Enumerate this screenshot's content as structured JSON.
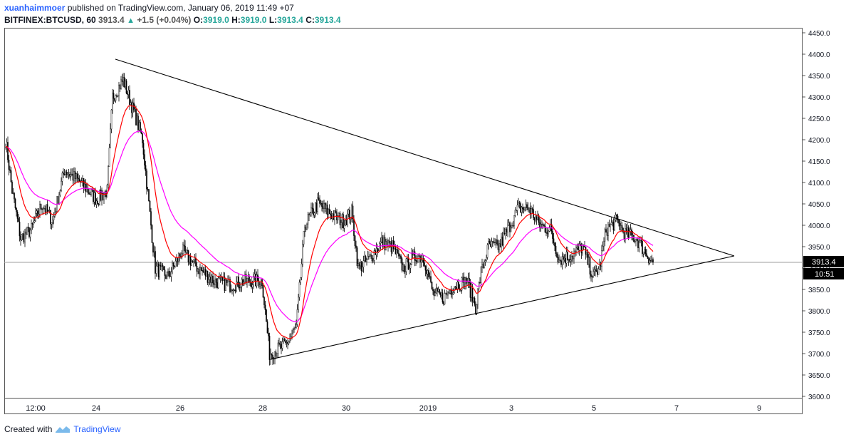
{
  "header": {
    "author": "xuanhaimmoer",
    "published": "published on TradingView.com, January 06, 2019 11:49 +07",
    "symbol": "BITFINEX:BTCUSD, 60",
    "last": "3913.4",
    "change": "+1.5 (+0.04%)",
    "o_label": "O:",
    "o_val": "3919.0",
    "h_label": "H:",
    "h_val": "3919.0",
    "l_label": "L:",
    "l_val": "3913.4",
    "c_label": "C:",
    "c_val": "3913.4"
  },
  "footer": {
    "created_with": "Created with",
    "brand": "TradingView"
  },
  "colors": {
    "ema_fast": "#ff0000",
    "ema_slow": "#ff00ff",
    "candle": "#000000",
    "trendline": "#000000",
    "price_line": "#9e9e9e",
    "up_arrow": "#26a69a"
  },
  "price_label": "3913.4",
  "countdown_label": "10:51",
  "chart_data": {
    "type": "candlestick",
    "y_axis": {
      "min": 3600,
      "max": 4450,
      "ticks": [
        3600,
        3650,
        3700,
        3750,
        3800,
        3850,
        3900,
        3950,
        4000,
        4050,
        4100,
        4150,
        4200,
        4250,
        4300,
        4350,
        4400,
        4450
      ],
      "tick_format": "0.0"
    },
    "x_axis": {
      "labels": [
        "12:00",
        "24",
        "26",
        "28",
        "30",
        "2019",
        "3",
        "5",
        "7",
        "9"
      ]
    },
    "last_price": 3913.4,
    "close_path": [
      {
        "i": 0,
        "p": 4200
      },
      {
        "i": 6,
        "p": 4080
      },
      {
        "i": 14,
        "p": 3970
      },
      {
        "i": 24,
        "p": 3990
      },
      {
        "i": 34,
        "p": 4050
      },
      {
        "i": 44,
        "p": 4010
      },
      {
        "i": 55,
        "p": 4130
      },
      {
        "i": 70,
        "p": 4100
      },
      {
        "i": 85,
        "p": 4060
      },
      {
        "i": 95,
        "p": 4080
      },
      {
        "i": 100,
        "p": 4300
      },
      {
        "i": 110,
        "p": 4340
      },
      {
        "i": 122,
        "p": 4250
      },
      {
        "i": 128,
        "p": 4200
      },
      {
        "i": 140,
        "p": 3900
      },
      {
        "i": 152,
        "p": 3880
      },
      {
        "i": 165,
        "p": 3940
      },
      {
        "i": 180,
        "p": 3900
      },
      {
        "i": 195,
        "p": 3870
      },
      {
        "i": 210,
        "p": 3860
      },
      {
        "i": 225,
        "p": 3870
      },
      {
        "i": 240,
        "p": 3870
      },
      {
        "i": 247,
        "p": 3700
      },
      {
        "i": 262,
        "p": 3720
      },
      {
        "i": 272,
        "p": 3760
      },
      {
        "i": 280,
        "p": 4000
      },
      {
        "i": 292,
        "p": 4050
      },
      {
        "i": 308,
        "p": 4020
      },
      {
        "i": 316,
        "p": 4010
      },
      {
        "i": 324,
        "p": 4030
      },
      {
        "i": 330,
        "p": 3900
      },
      {
        "i": 340,
        "p": 3920
      },
      {
        "i": 352,
        "p": 3960
      },
      {
        "i": 362,
        "p": 3950
      },
      {
        "i": 372,
        "p": 3900
      },
      {
        "i": 385,
        "p": 3930
      },
      {
        "i": 392,
        "p": 3920
      },
      {
        "i": 400,
        "p": 3840
      },
      {
        "i": 410,
        "p": 3830
      },
      {
        "i": 420,
        "p": 3860
      },
      {
        "i": 432,
        "p": 3870
      },
      {
        "i": 440,
        "p": 3810
      },
      {
        "i": 445,
        "p": 3890
      },
      {
        "i": 452,
        "p": 3950
      },
      {
        "i": 462,
        "p": 3950
      },
      {
        "i": 470,
        "p": 3990
      },
      {
        "i": 480,
        "p": 4040
      },
      {
        "i": 490,
        "p": 4040
      },
      {
        "i": 500,
        "p": 4000
      },
      {
        "i": 510,
        "p": 3990
      },
      {
        "i": 518,
        "p": 3920
      },
      {
        "i": 530,
        "p": 3930
      },
      {
        "i": 540,
        "p": 3950
      },
      {
        "i": 550,
        "p": 3880
      },
      {
        "i": 556,
        "p": 3900
      },
      {
        "i": 562,
        "p": 3990
      },
      {
        "i": 572,
        "p": 4010
      },
      {
        "i": 580,
        "p": 3980
      },
      {
        "i": 590,
        "p": 3970
      },
      {
        "i": 598,
        "p": 3940
      },
      {
        "i": 606,
        "p": 3912
      }
    ]
  }
}
